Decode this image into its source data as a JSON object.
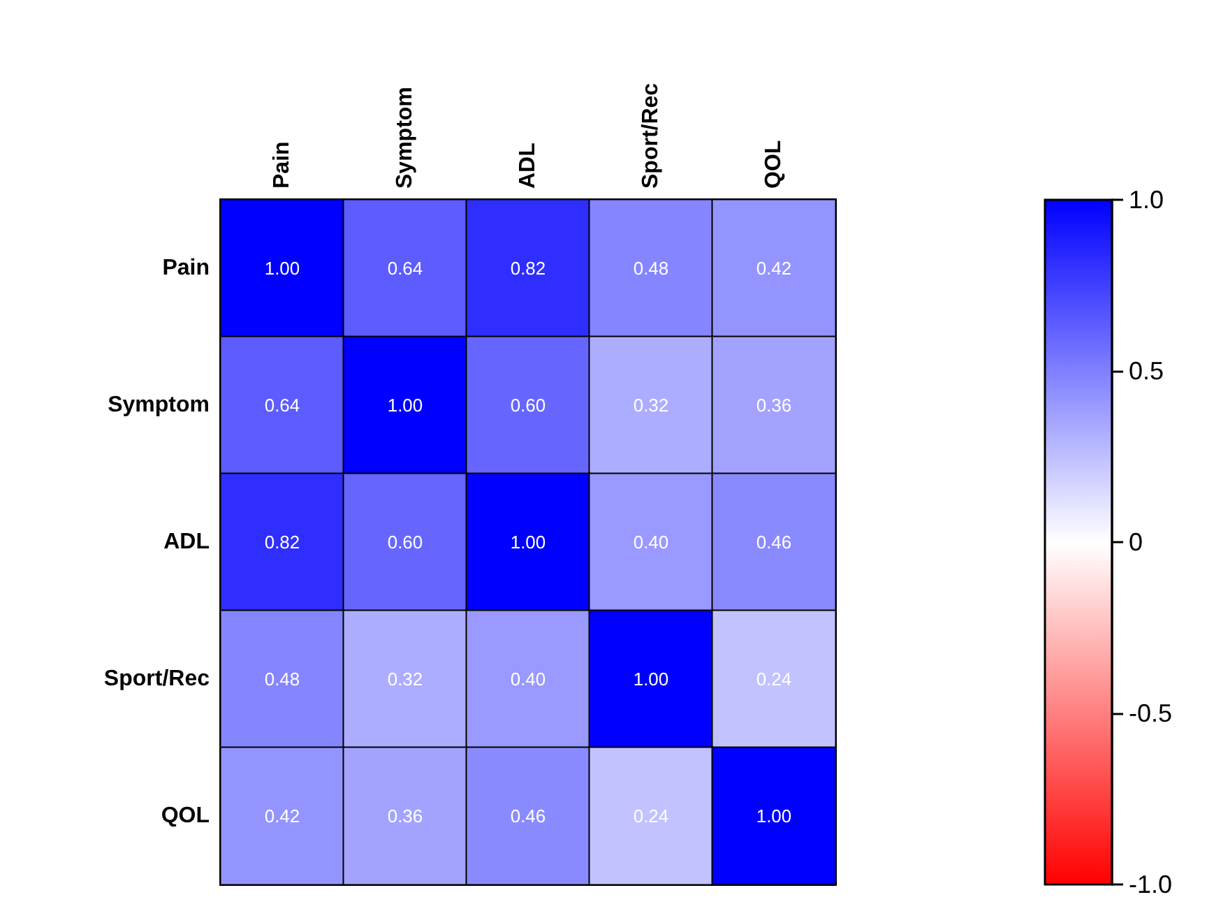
{
  "chart_data": {
    "type": "heatmap",
    "categories": [
      "Pain",
      "Symptom",
      "ADL",
      "Sport/Rec",
      "QOL"
    ],
    "y_categories": [
      "Pain",
      "Symptom",
      "ADL",
      "Sport/Rec",
      "QOL"
    ],
    "cells": [
      [
        1,
        0.64,
        0.82,
        0.48,
        0.42
      ],
      [
        0.64,
        1,
        0.6,
        0.32,
        0.36
      ],
      [
        0.82,
        0.6,
        1,
        0.4,
        0.46
      ],
      [
        0.48,
        0.32,
        0.4,
        1,
        0.24
      ],
      [
        0.42,
        0.36,
        0.46,
        0.24,
        1
      ]
    ],
    "cell_labels": [
      [
        "1.00",
        "0.64",
        "0.82",
        "0.48",
        "0.42"
      ],
      [
        "0.64",
        "1.00",
        "0.60",
        "0.32",
        "0.36"
      ],
      [
        "0.82",
        "0.60",
        "1.00",
        "0.40",
        "0.46"
      ],
      [
        "0.48",
        "0.32",
        "0.40",
        "1.00",
        "0.24"
      ],
      [
        "0.42",
        "0.36",
        "0.46",
        "0.24",
        "1.00"
      ]
    ],
    "clim": [
      -1,
      1
    ],
    "cticks": [
      {
        "value": 1,
        "label": "1.0"
      },
      0.5,
      0,
      -0.5,
      {
        "value": -1,
        "label": "-1.0"
      }
    ]
  }
}
